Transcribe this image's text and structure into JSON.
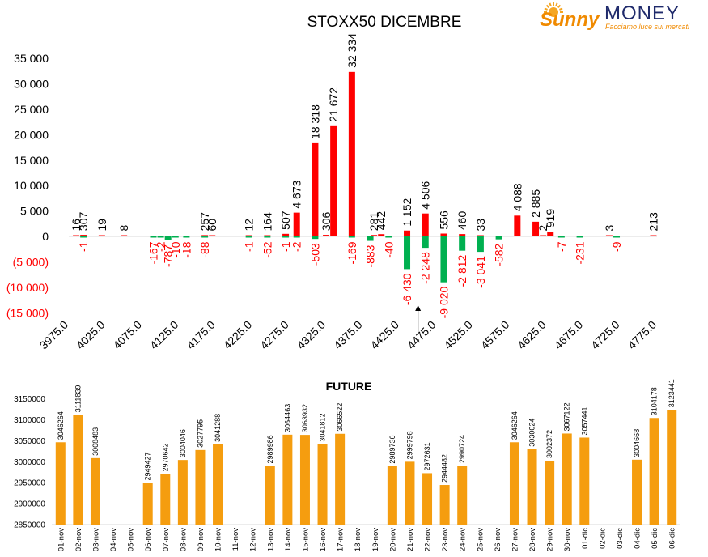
{
  "logo": {
    "brand_sunny": "Sunny",
    "brand_money": "MONEY",
    "tagline": "Facciamo luce sui mercati",
    "colors": {
      "sun": "#f5a623",
      "sunny_text": "#f08a00",
      "money_text": "#1f2a6b",
      "tagline": "#f08a00"
    }
  },
  "colors": {
    "call": "#ff0000",
    "put": "#00b050",
    "future": "#f59d0f",
    "neg_label": "#ff0000",
    "text": "#000000"
  },
  "chart_data": [
    {
      "type": "bar",
      "title": "STOXX50 DICEMBRE",
      "ylim": [
        -15000,
        35000
      ],
      "yticks": [
        35000,
        30000,
        25000,
        20000,
        15000,
        10000,
        5000,
        0,
        -5000,
        -10000,
        -15000
      ],
      "ytick_labels": [
        "35 000",
        "30 000",
        "25 000",
        "20 000",
        "15 000",
        "10 000",
        "5 000",
        "0",
        "(5 000)",
        "(10 000)",
        "(15 000)"
      ],
      "xlim": [
        3975,
        4775
      ],
      "xticks": [
        3975,
        4025,
        4075,
        4125,
        4175,
        4225,
        4275,
        4325,
        4375,
        4425,
        4475,
        4525,
        4575,
        4625,
        4675,
        4725,
        4775
      ],
      "xtick_labels": [
        "3975.0",
        "4025.0",
        "4075.0",
        "4125.0",
        "4175.0",
        "4225.0",
        "4275.0",
        "4325.0",
        "4375.0",
        "4425.0",
        "4475.0",
        "4525.0",
        "4575.0",
        "4625.0",
        "4675.0",
        "4725.0",
        "4775.0"
      ],
      "marker": {
        "strike": 4450
      },
      "series": [
        {
          "values": [
            {
              "strike": 3985,
              "value": 16,
              "label": "16"
            },
            {
              "strike": 3995,
              "value": 307,
              "label": "307"
            },
            {
              "strike": 4020,
              "value": 19,
              "label": "19"
            },
            {
              "strike": 4050,
              "value": 8,
              "label": "8"
            },
            {
              "strike": 4160,
              "value": 257,
              "label": "257"
            },
            {
              "strike": 4170,
              "value": 60,
              "label": "60"
            },
            {
              "strike": 4220,
              "value": 12,
              "label": "12"
            },
            {
              "strike": 4245,
              "value": 164,
              "label": "164"
            },
            {
              "strike": 4270,
              "value": 507,
              "label": "507"
            },
            {
              "strike": 4285,
              "value": 4673,
              "label": "4 673"
            },
            {
              "strike": 4310,
              "value": 18318,
              "label": "18 318"
            },
            {
              "strike": 4325,
              "value": 306,
              "label": "306"
            },
            {
              "strike": 4335,
              "value": 21672,
              "label": "21 672"
            },
            {
              "strike": 4360,
              "value": 32334,
              "label": "32 334"
            },
            {
              "strike": 4390,
              "value": 281,
              "label": "281"
            },
            {
              "strike": 4400,
              "value": 442,
              "label": "442"
            },
            {
              "strike": 4435,
              "value": 1152,
              "label": "1 152"
            },
            {
              "strike": 4460,
              "value": 4506,
              "label": "4 506"
            },
            {
              "strike": 4485,
              "value": 556,
              "label": "556"
            },
            {
              "strike": 4510,
              "value": 460,
              "label": "460"
            },
            {
              "strike": 4535,
              "value": 33,
              "label": "33"
            },
            {
              "strike": 4585,
              "value": 4088,
              "label": "4 088"
            },
            {
              "strike": 4610,
              "value": 2885,
              "label": "2 885"
            },
            {
              "strike": 4620,
              "value": 2,
              "label": "2"
            },
            {
              "strike": 4630,
              "value": 919,
              "label": "919"
            },
            {
              "strike": 4710,
              "value": 3,
              "label": "3"
            },
            {
              "strike": 4770,
              "value": 213,
              "label": "213"
            }
          ]
        },
        {
          "values": [
            {
              "strike": 3995,
              "value": -1,
              "label": "-1"
            },
            {
              "strike": 4090,
              "value": -167,
              "label": "-167"
            },
            {
              "strike": 4100,
              "value": -2,
              "label": "-2"
            },
            {
              "strike": 4110,
              "value": -787,
              "label": "-787"
            },
            {
              "strike": 4120,
              "value": -10,
              "label": "-10"
            },
            {
              "strike": 4135,
              "value": -18,
              "label": "-18"
            },
            {
              "strike": 4160,
              "value": -88,
              "label": "-88"
            },
            {
              "strike": 4220,
              "value": -1,
              "label": "-1"
            },
            {
              "strike": 4245,
              "value": -52,
              "label": "-52"
            },
            {
              "strike": 4270,
              "value": -1,
              "label": "-1"
            },
            {
              "strike": 4285,
              "value": -2,
              "label": "-2"
            },
            {
              "strike": 4310,
              "value": -503,
              "label": "-503"
            },
            {
              "strike": 4360,
              "value": -169,
              "label": "-169"
            },
            {
              "strike": 4385,
              "value": -883,
              "label": "-883"
            },
            {
              "strike": 4410,
              "value": -40,
              "label": "-40"
            },
            {
              "strike": 4435,
              "value": -6430,
              "label": "-6 430"
            },
            {
              "strike": 4460,
              "value": -2248,
              "label": "-2 248"
            },
            {
              "strike": 4485,
              "value": -9020,
              "label": "-9 020"
            },
            {
              "strike": 4510,
              "value": -2812,
              "label": "-2 812"
            },
            {
              "strike": 4535,
              "value": -3041,
              "label": "-3 041"
            },
            {
              "strike": 4560,
              "value": -582,
              "label": "-582"
            },
            {
              "strike": 4645,
              "value": -7,
              "label": "-7"
            },
            {
              "strike": 4670,
              "value": -231,
              "label": "-231"
            },
            {
              "strike": 4720,
              "value": -9,
              "label": "-9"
            }
          ]
        }
      ]
    },
    {
      "type": "bar",
      "title": "FUTURE",
      "ylim": [
        2850000,
        3150000
      ],
      "yticks": [
        2850000,
        2900000,
        2950000,
        3000000,
        3050000,
        3100000,
        3150000
      ],
      "categories": [
        "01-nov",
        "02-nov",
        "03-nov",
        "04-nov",
        "05-nov",
        "06-nov",
        "07-nov",
        "08-nov",
        "09-nov",
        "10-nov",
        "11-nov",
        "12-nov",
        "13-nov",
        "14-nov",
        "15-nov",
        "16-nov",
        "17-nov",
        "18-nov",
        "19-nov",
        "20-nov",
        "21-nov",
        "22-nov",
        "23-nov",
        "24-nov",
        "25-nov",
        "26-nov",
        "27-nov",
        "28-nov",
        "29-nov",
        "30-nov",
        "01-dic",
        "02-dic",
        "03-dic",
        "04-dic",
        "05-dic",
        "06-dic"
      ],
      "values": [
        3046264,
        3111839,
        3008483,
        null,
        null,
        2949427,
        2970642,
        3004046,
        3027795,
        3041288,
        null,
        null,
        2989986,
        3064463,
        3063932,
        3041812,
        3066522,
        null,
        null,
        2989736,
        2999798,
        2972631,
        2944482,
        2990724,
        null,
        null,
        3046264,
        3030024,
        3002372,
        3067122,
        3057441,
        null,
        null,
        3004668,
        3104178,
        3123441
      ]
    }
  ]
}
